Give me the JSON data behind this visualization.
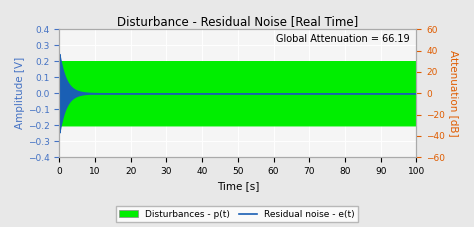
{
  "title": "Disturbance - Residual Noise [Real Time]",
  "xlabel": "Time [s]",
  "ylabel_left": "Amplitude [V]",
  "ylabel_right": "Attenuation [dB]",
  "annotation": "Global Attenuation = 66.19",
  "xlim": [
    0,
    100
  ],
  "ylim_left": [
    -0.4,
    0.4
  ],
  "ylim_right": [
    -60,
    60
  ],
  "yticks_left": [
    -0.4,
    -0.3,
    -0.2,
    -0.1,
    0.0,
    0.1,
    0.2,
    0.3,
    0.4
  ],
  "yticks_right": [
    -60,
    -40,
    -20,
    0,
    20,
    40,
    60
  ],
  "xticks": [
    0,
    10,
    20,
    30,
    40,
    50,
    60,
    70,
    80,
    90,
    100
  ],
  "disturbance_color": "#00ee00",
  "residual_color": "#1a5fb4",
  "background_color": "#e8e8e8",
  "plot_bg_color": "#f5f5f5",
  "grid_color": "#ffffff",
  "disturbance_band": 0.2,
  "initial_amplitude": 0.245,
  "decay_rate": 0.55,
  "legend_label_disturbance": "Disturbances - p(t)",
  "legend_label_residual": "Residual noise - e(t)",
  "title_fontsize": 8.5,
  "label_fontsize": 7.5,
  "tick_fontsize": 6.5,
  "annotation_fontsize": 7
}
